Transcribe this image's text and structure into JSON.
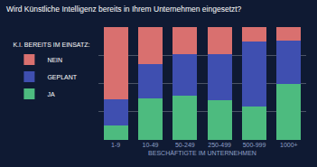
{
  "chart_data": {
    "type": "bar",
    "stacked": true,
    "title": "Wird Künstliche Intelligenz bereits in Ihrem Unternehmen eingesetzt?",
    "x_label": "BESCHÄFTIGTE IM UNTERNEHMEN",
    "legend_title": "K.I. BEREITS IM EINSATZ:",
    "legend": "left",
    "categories": [
      "1-9",
      "10-49",
      "50-249",
      "250-499",
      "500-999",
      "1000+"
    ],
    "series": [
      {
        "name": "JA",
        "color": "#4dbb7f",
        "values": [
          13,
          37,
          39,
          35,
          30,
          50
        ]
      },
      {
        "name": "GEPLANT",
        "color": "#3f4fb0",
        "values": [
          23,
          30,
          37,
          41,
          57,
          38
        ]
      },
      {
        "name": "NEIN",
        "color": "#d9706f",
        "values": [
          64,
          33,
          24,
          24,
          13,
          12
        ]
      }
    ],
    "ylim": [
      0,
      100
    ],
    "yticks": [
      0,
      25,
      50,
      75,
      100
    ],
    "grid": true,
    "tick_labels": "x"
  }
}
